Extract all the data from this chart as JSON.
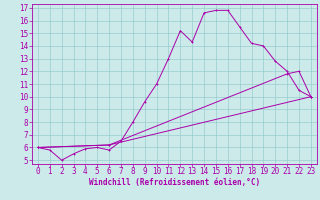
{
  "xlabel": "Windchill (Refroidissement éolien,°C)",
  "bg_color": "#cceaea",
  "line_color": "#aa00aa",
  "grid_color": "#99cccc",
  "xlim": [
    -0.5,
    23.5
  ],
  "ylim": [
    4.7,
    17.3
  ],
  "xticks": [
    0,
    1,
    2,
    3,
    4,
    5,
    6,
    7,
    8,
    9,
    10,
    11,
    12,
    13,
    14,
    15,
    16,
    17,
    18,
    19,
    20,
    21,
    22,
    23
  ],
  "yticks": [
    5,
    6,
    7,
    8,
    9,
    10,
    11,
    12,
    13,
    14,
    15,
    16,
    17
  ],
  "curve1_x": [
    0,
    1,
    2,
    3,
    4,
    5,
    6,
    7,
    8,
    9,
    10,
    11,
    12,
    13,
    14,
    15,
    16,
    17,
    18,
    19,
    20,
    21,
    22,
    23
  ],
  "curve1_y": [
    6.0,
    5.8,
    5.0,
    5.5,
    5.9,
    6.0,
    5.8,
    6.5,
    8.0,
    9.6,
    11.0,
    13.0,
    15.2,
    14.3,
    16.6,
    16.8,
    16.8,
    15.5,
    14.2,
    14.0,
    12.8,
    12.0,
    10.5,
    10.0
  ],
  "curve2_x": [
    0,
    6,
    23
  ],
  "curve2_y": [
    6.0,
    6.2,
    10.0
  ],
  "curve3_x": [
    0,
    6,
    21,
    22,
    23
  ],
  "curve3_y": [
    6.0,
    6.2,
    11.8,
    12.0,
    10.0
  ],
  "tick_fontsize": 5.5,
  "xlabel_fontsize": 5.5
}
